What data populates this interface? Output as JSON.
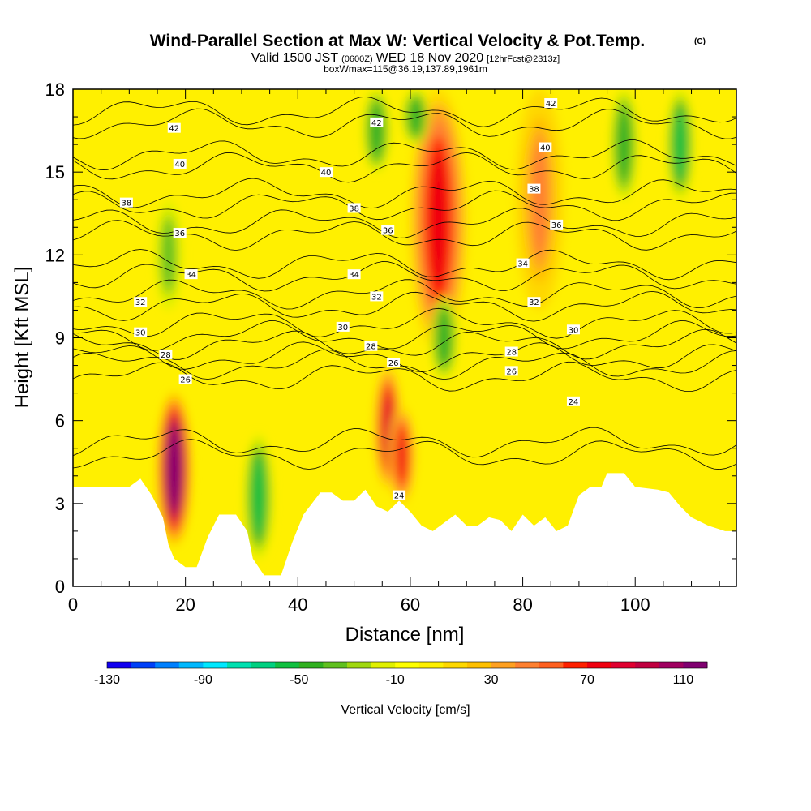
{
  "chart_data": {
    "type": "heatmap",
    "title": "Wind-Parallel Section at Max W: Vertical Velocity & Pot.Temp.",
    "title_suffix": "(C)",
    "subtitle_line1_a": "Valid 1500 JST",
    "subtitle_line1_b": "(0600Z)",
    "subtitle_line1_c": "WED 18 Nov 2020",
    "subtitle_line1_d": "[12hrFcst@2313z]",
    "subtitle_line2": "boxWmax=115@36.19,137.89,1961m",
    "xlabel": "Distance [nm]",
    "ylabel": "Height [Kft MSL]",
    "xlim": [
      0,
      118
    ],
    "ylim": [
      0,
      18
    ],
    "xticks": [
      0,
      20,
      40,
      60,
      80,
      100
    ],
    "yticks": [
      0,
      3,
      6,
      9,
      12,
      15,
      18
    ],
    "colorbar": {
      "label": "Vertical Velocity [cm/s]",
      "min": -130,
      "max": 120,
      "step": 10,
      "tick_values": [
        -130,
        -90,
        -50,
        -10,
        30,
        70,
        110
      ],
      "tick_labels": [
        "-130",
        "-90",
        "-50",
        "-10",
        "30",
        "70",
        "110"
      ],
      "colors": [
        "#1200f0",
        "#0040f8",
        "#0080ff",
        "#00b8ff",
        "#00e8ff",
        "#00e0b0",
        "#00d080",
        "#10c040",
        "#30b020",
        "#60c020",
        "#a0d810",
        "#e0f000",
        "#ffff00",
        "#fff000",
        "#ffd800",
        "#ffc000",
        "#ffa020",
        "#ff8030",
        "#ff6020",
        "#ff2000",
        "#f00010",
        "#e00030",
        "#c00040",
        "#a00060",
        "#800070"
      ]
    },
    "velocity_features": [
      {
        "x": 18,
        "z_bottom": 1.5,
        "z_top": 7.0,
        "w_max": 115
      },
      {
        "x": 56,
        "z_bottom": 3.5,
        "z_top": 8.0,
        "w_max": 80
      },
      {
        "x": 58.5,
        "z_bottom": 3.0,
        "z_top": 6.5,
        "w_max": 70
      },
      {
        "x": 65,
        "z_bottom": 8.5,
        "z_top": 18,
        "w_max": 70
      },
      {
        "x": 83,
        "z_bottom": 10,
        "z_top": 18,
        "w_max": 40
      },
      {
        "x": 33,
        "z_bottom": 1.0,
        "z_top": 5.5,
        "w_max": -60
      },
      {
        "x": 66,
        "z_bottom": 7.5,
        "z_top": 10.5,
        "w_max": -50
      },
      {
        "x": 54,
        "z_bottom": 15,
        "z_top": 18,
        "w_max": -50
      },
      {
        "x": 61,
        "z_bottom": 16,
        "z_top": 18,
        "w_max": -50
      },
      {
        "x": 98,
        "z_bottom": 14,
        "z_top": 18,
        "w_max": -50
      },
      {
        "x": 108,
        "z_bottom": 14,
        "z_top": 18,
        "w_max": -60
      },
      {
        "x": 17,
        "z_bottom": 10,
        "z_top": 14,
        "w_max": -40
      }
    ],
    "theta_contour_labels": [
      {
        "text": "42",
        "x": 18,
        "z": 16.6
      },
      {
        "text": "42",
        "x": 54,
        "z": 16.8
      },
      {
        "text": "42",
        "x": 85,
        "z": 17.5
      },
      {
        "text": "40",
        "x": 19,
        "z": 15.3
      },
      {
        "text": "40",
        "x": 45,
        "z": 15.0
      },
      {
        "text": "40",
        "x": 84,
        "z": 15.9
      },
      {
        "text": "38",
        "x": 9.5,
        "z": 13.9
      },
      {
        "text": "38",
        "x": 50,
        "z": 13.7
      },
      {
        "text": "38",
        "x": 82,
        "z": 14.4
      },
      {
        "text": "36",
        "x": 19,
        "z": 12.8
      },
      {
        "text": "36",
        "x": 56,
        "z": 12.9
      },
      {
        "text": "36",
        "x": 86,
        "z": 13.1
      },
      {
        "text": "34",
        "x": 21,
        "z": 11.3
      },
      {
        "text": "34",
        "x": 50,
        "z": 11.3
      },
      {
        "text": "34",
        "x": 80,
        "z": 11.7
      },
      {
        "text": "32",
        "x": 12,
        "z": 10.3
      },
      {
        "text": "32",
        "x": 54,
        "z": 10.5
      },
      {
        "text": "32",
        "x": 82,
        "z": 10.3
      },
      {
        "text": "30",
        "x": 12,
        "z": 9.2
      },
      {
        "text": "30",
        "x": 48,
        "z": 9.4
      },
      {
        "text": "30",
        "x": 89,
        "z": 9.3
      },
      {
        "text": "28",
        "x": 16.5,
        "z": 8.4
      },
      {
        "text": "28",
        "x": 53,
        "z": 8.7
      },
      {
        "text": "28",
        "x": 78,
        "z": 8.5
      },
      {
        "text": "26",
        "x": 20,
        "z": 7.5
      },
      {
        "text": "26",
        "x": 57,
        "z": 8.1
      },
      {
        "text": "26",
        "x": 78,
        "z": 7.8
      },
      {
        "text": "24",
        "x": 89,
        "z": 6.7
      },
      {
        "text": "24",
        "x": 58,
        "z": 3.3
      }
    ],
    "terrain_kft": [
      [
        0,
        3.6
      ],
      [
        5,
        3.6
      ],
      [
        10,
        3.6
      ],
      [
        12,
        3.9
      ],
      [
        14,
        3.3
      ],
      [
        16,
        2.5
      ],
      [
        17,
        1.5
      ],
      [
        18,
        1.0
      ],
      [
        20,
        0.7
      ],
      [
        22,
        0.7
      ],
      [
        24,
        1.8
      ],
      [
        26,
        2.6
      ],
      [
        29,
        2.6
      ],
      [
        31,
        2.0
      ],
      [
        32,
        1.0
      ],
      [
        34,
        0.4
      ],
      [
        37,
        0.4
      ],
      [
        39,
        1.6
      ],
      [
        41,
        2.6
      ],
      [
        44,
        3.4
      ],
      [
        46,
        3.4
      ],
      [
        48,
        3.1
      ],
      [
        50,
        3.1
      ],
      [
        52,
        3.5
      ],
      [
        54,
        2.9
      ],
      [
        56,
        2.7
      ],
      [
        58,
        3.1
      ],
      [
        60,
        2.7
      ],
      [
        62,
        2.2
      ],
      [
        64,
        2.0
      ],
      [
        66,
        2.3
      ],
      [
        68,
        2.6
      ],
      [
        70,
        2.2
      ],
      [
        72,
        2.2
      ],
      [
        74,
        2.5
      ],
      [
        76,
        2.4
      ],
      [
        78,
        2.0
      ],
      [
        80,
        2.6
      ],
      [
        82,
        2.2
      ],
      [
        84,
        2.5
      ],
      [
        86,
        2.0
      ],
      [
        88,
        2.2
      ],
      [
        90,
        3.3
      ],
      [
        92,
        3.6
      ],
      [
        94,
        3.6
      ],
      [
        95,
        4.1
      ],
      [
        98,
        4.1
      ],
      [
        100,
        3.6
      ],
      [
        104,
        3.5
      ],
      [
        106,
        3.4
      ],
      [
        108,
        2.9
      ],
      [
        110,
        2.5
      ],
      [
        113,
        2.2
      ],
      [
        116,
        2.0
      ],
      [
        118,
        2.0
      ]
    ]
  }
}
